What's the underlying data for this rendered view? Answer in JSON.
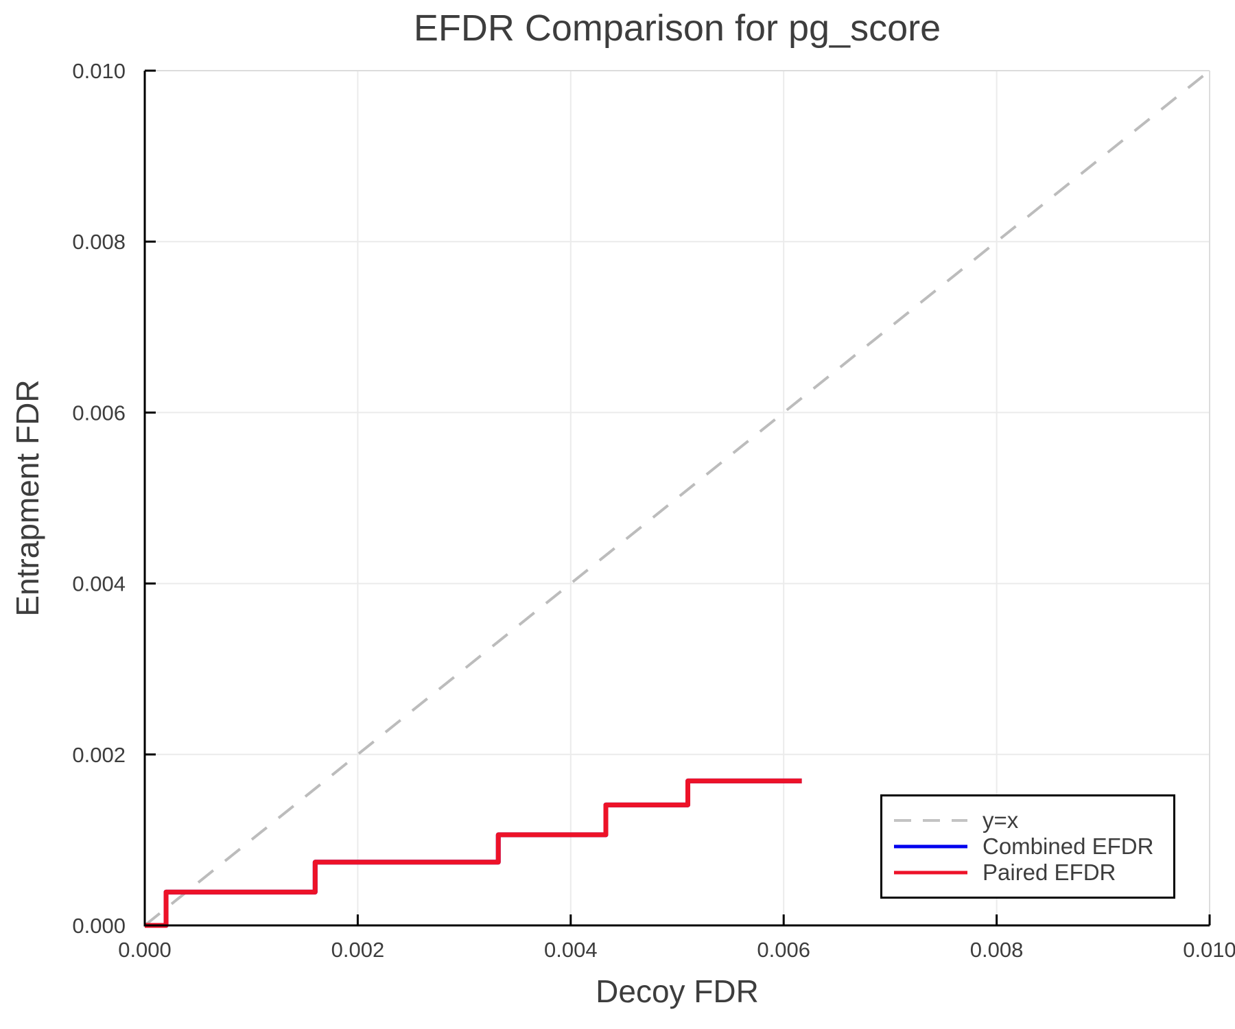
{
  "figure": {
    "background": "#ffffff",
    "text_color": "#3d3d3d"
  },
  "chart_data": {
    "type": "line",
    "title": "EFDR Comparison for pg_score",
    "xlabel": "Decoy FDR",
    "ylabel": "Entrapment FDR",
    "xlim": [
      0.0,
      0.01
    ],
    "ylim": [
      0.0,
      0.01
    ],
    "grid": true,
    "grid_color": "#ebebeb",
    "frame_color": "#dcdcdc",
    "axis_color": "#000000",
    "legend_position": "bottom-right",
    "xtick_values": [
      0.0,
      0.002,
      0.004,
      0.006,
      0.008,
      0.01
    ],
    "xtick_labels": [
      "0.000",
      "0.002",
      "0.004",
      "0.006",
      "0.008",
      "0.010"
    ],
    "ytick_values": [
      0.0,
      0.002,
      0.004,
      0.006,
      0.008,
      0.01
    ],
    "ytick_labels": [
      "0.000",
      "0.002",
      "0.004",
      "0.006",
      "0.008",
      "0.010"
    ],
    "series": [
      {
        "name": "y=x",
        "style": "dashed",
        "color": "#bcbcbc",
        "width": 4,
        "points": [
          [
            0.0,
            0.0
          ],
          [
            0.01,
            0.01
          ]
        ]
      },
      {
        "name": "Combined EFDR",
        "style": "solid",
        "color": "#0000ee",
        "width": 7,
        "note": "coincides exactly with Paired EFDR and is hidden beneath it",
        "points": [
          [
            0.0,
            0.0
          ],
          [
            0.0002,
            0.0
          ],
          [
            0.0002,
            0.00039
          ],
          [
            0.0016,
            0.00039
          ],
          [
            0.0016,
            0.00074
          ],
          [
            0.00332,
            0.00074
          ],
          [
            0.00332,
            0.00106
          ],
          [
            0.00433,
            0.00106
          ],
          [
            0.00433,
            0.00141
          ],
          [
            0.0051,
            0.00141
          ],
          [
            0.0051,
            0.00169
          ],
          [
            0.00617,
            0.00169
          ]
        ]
      },
      {
        "name": "Paired EFDR",
        "style": "solid",
        "color": "#ed1228",
        "width": 7,
        "points": [
          [
            0.0,
            0.0
          ],
          [
            0.0002,
            0.0
          ],
          [
            0.0002,
            0.00039
          ],
          [
            0.0016,
            0.00039
          ],
          [
            0.0016,
            0.00074
          ],
          [
            0.00332,
            0.00074
          ],
          [
            0.00332,
            0.00106
          ],
          [
            0.00433,
            0.00106
          ],
          [
            0.00433,
            0.00141
          ],
          [
            0.0051,
            0.00141
          ],
          [
            0.0051,
            0.00169
          ],
          [
            0.00617,
            0.00169
          ]
        ]
      }
    ]
  }
}
